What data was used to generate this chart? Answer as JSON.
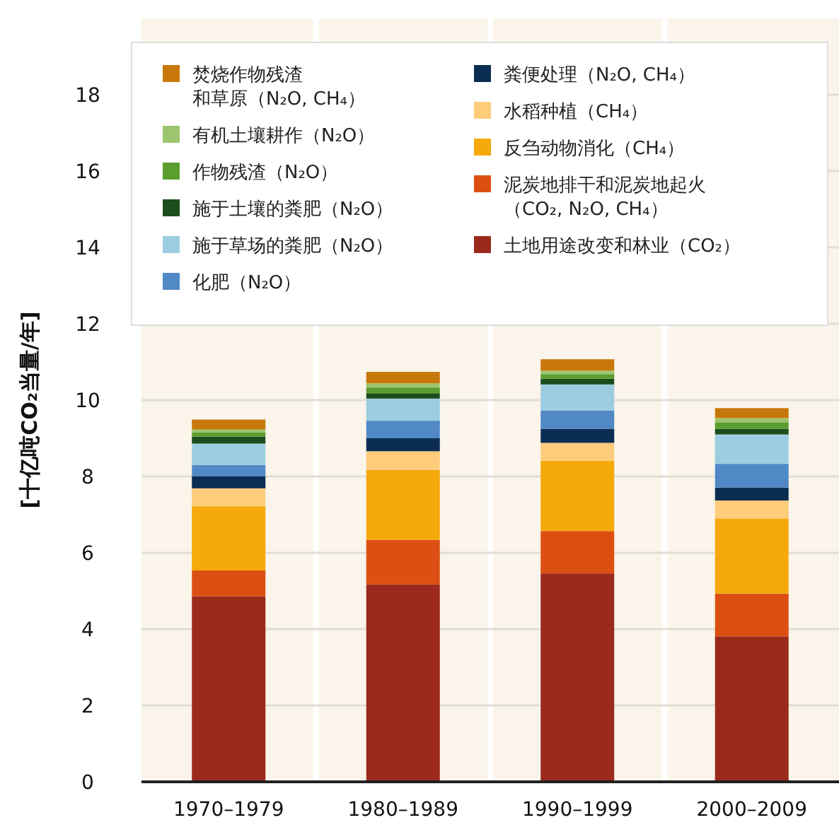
{
  "chart_data": {
    "type": "bar",
    "stacked": true,
    "ylabel": "[十亿吨CO₂当量/年]",
    "categories": [
      "1970–1979",
      "1980–1989",
      "1990–1999",
      "2000–2009"
    ],
    "ylim": [
      0,
      20
    ],
    "yticks": [
      0,
      2,
      4,
      6,
      8,
      10,
      12,
      14,
      16,
      18
    ],
    "grid": "y",
    "legend": "top",
    "series": [
      {
        "name": "土地用途改变和林业（CO₂）",
        "color": "#9b2a1c",
        "values": [
          4.86,
          5.17,
          5.46,
          3.81
        ]
      },
      {
        "name": "泥炭地排干和泥炭地起火（CO₂, N₂O, CH₄）",
        "color": "#dc4f12",
        "values": [
          0.68,
          1.17,
          1.11,
          1.12
        ]
      },
      {
        "name": "反刍动物消化（CH₄）",
        "color": "#f5a90a",
        "values": [
          1.68,
          1.83,
          1.84,
          1.97
        ]
      },
      {
        "name": "水稻种植（CH₄）",
        "color": "#fdcd7c",
        "values": [
          0.47,
          0.49,
          0.47,
          0.47
        ]
      },
      {
        "name": "粪便处理（N₂O, CH₄）",
        "color": "#0b2d52",
        "values": [
          0.31,
          0.34,
          0.37,
          0.34
        ]
      },
      {
        "name": "化肥（N₂O）",
        "color": "#5089c6",
        "values": [
          0.3,
          0.46,
          0.48,
          0.62
        ]
      },
      {
        "name": "施于草场的粪肥（N₂O）",
        "color": "#9ccde0",
        "values": [
          0.56,
          0.58,
          0.68,
          0.77
        ]
      },
      {
        "name": "施于土壤的粪肥（N₂O）",
        "color": "#1c4d1c",
        "values": [
          0.18,
          0.14,
          0.15,
          0.15
        ]
      },
      {
        "name": "作物残渣（N₂O）",
        "color": "#5a9e2f",
        "values": [
          0.11,
          0.15,
          0.12,
          0.17
        ]
      },
      {
        "name": "有机土壤耕作（N₂O）",
        "color": "#9dc46f",
        "values": [
          0.08,
          0.11,
          0.09,
          0.11
        ]
      },
      {
        "name": "焚烧作物残渣和草原（N₂O, CH₄）",
        "color": "#c8780a",
        "values": [
          0.26,
          0.3,
          0.3,
          0.26
        ]
      }
    ]
  }
}
